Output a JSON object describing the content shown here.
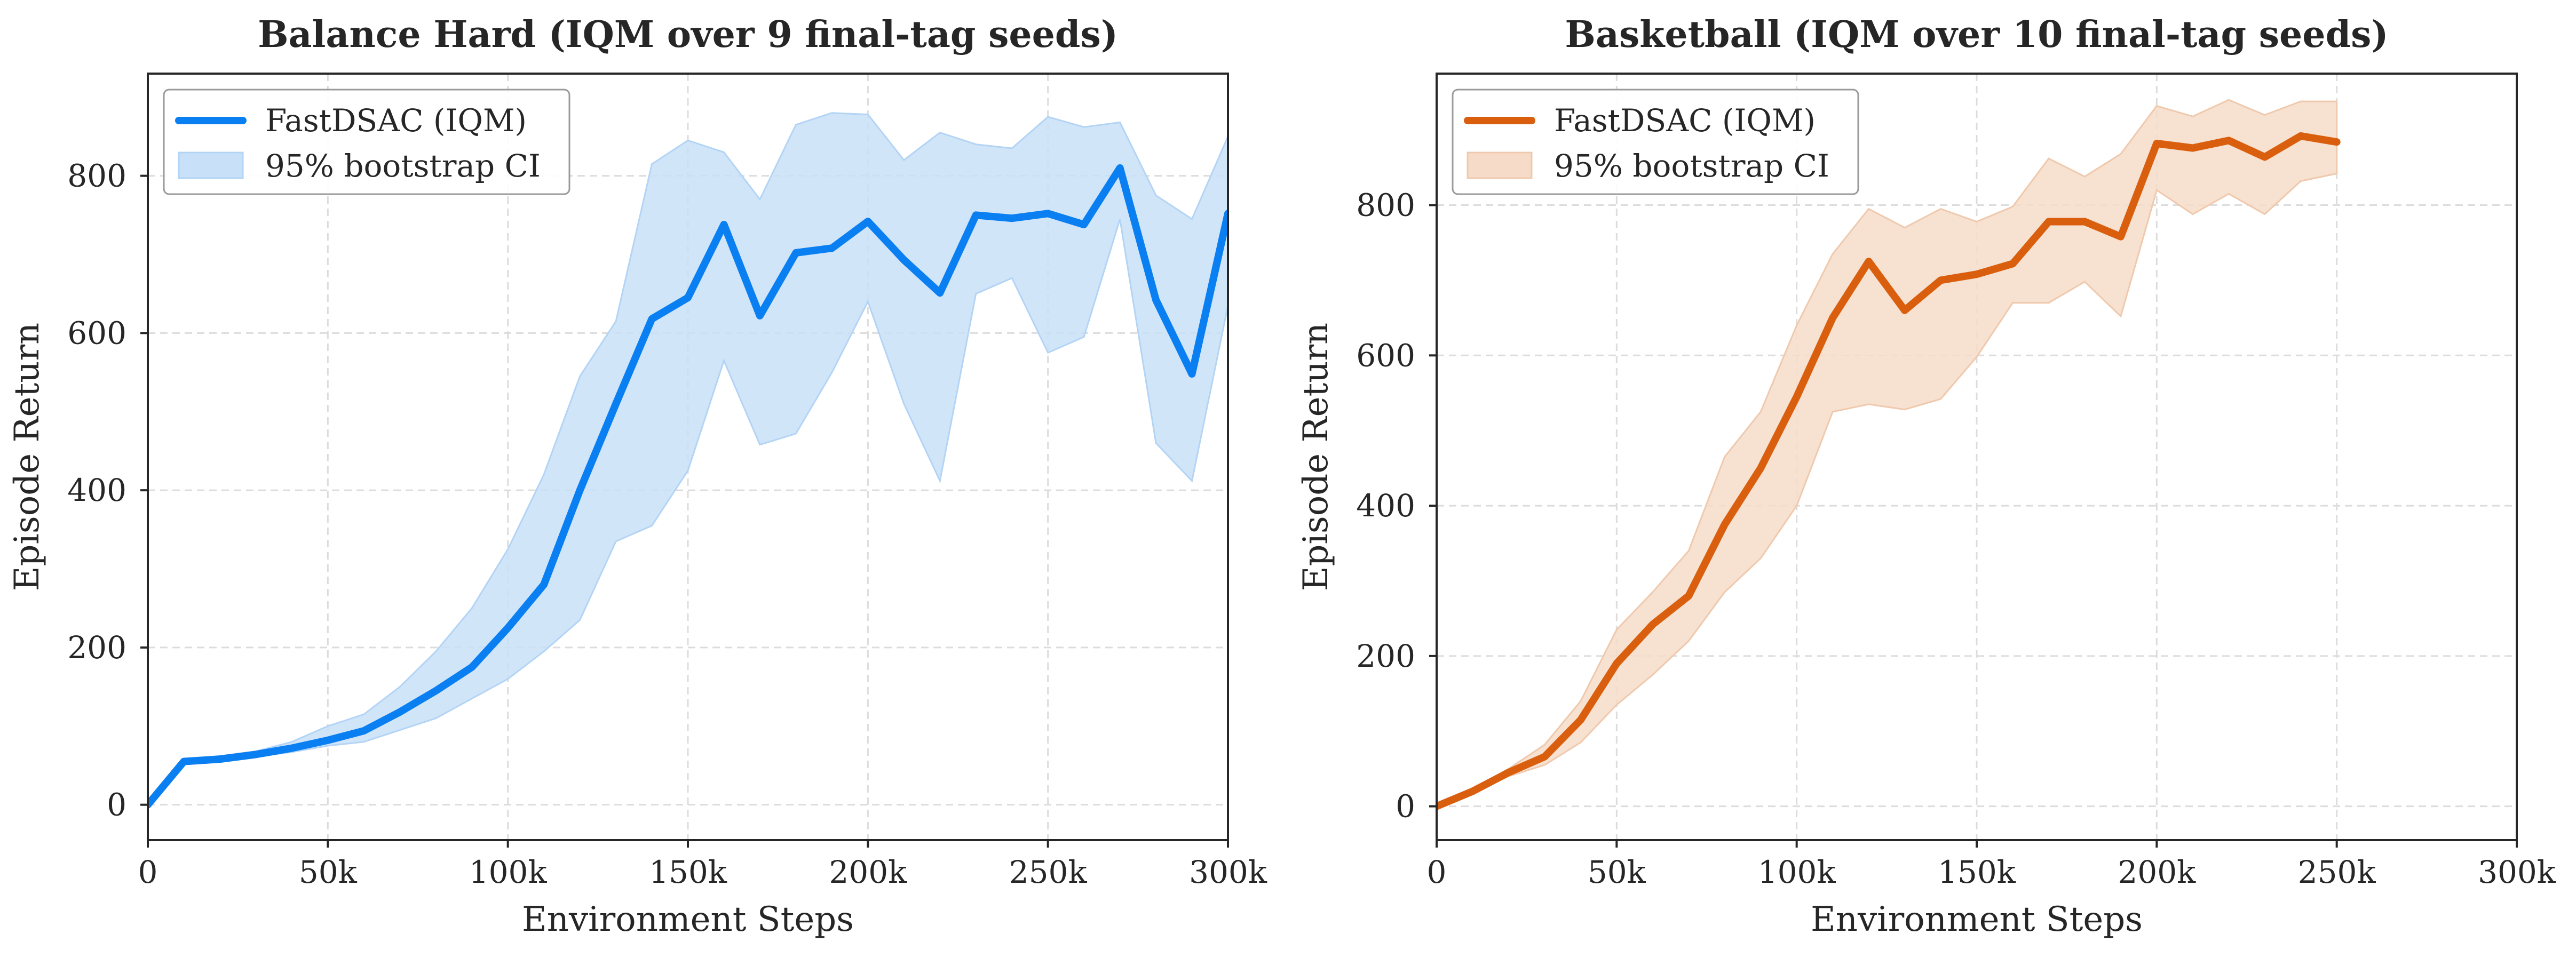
{
  "chart_data": [
    {
      "type": "line",
      "title": "Balance Hard (IQM over 9 final-tag seeds)",
      "xlabel": "Environment Steps",
      "ylabel": "Episode Return",
      "xlim": [
        0,
        300000
      ],
      "ylim": [
        -45,
        930
      ],
      "xticks": [
        0,
        50000,
        100000,
        150000,
        200000,
        250000,
        300000
      ],
      "xtick_labels": [
        "0",
        "50k",
        "100k",
        "150k",
        "200k",
        "250k",
        "300k"
      ],
      "yticks": [
        0,
        200,
        400,
        600,
        800
      ],
      "ytick_labels": [
        "0",
        "200",
        "400",
        "600",
        "800"
      ],
      "grid": true,
      "legend_position": "upper-left",
      "colors": {
        "line": "#0a7ff2",
        "band": "#c9e1f8",
        "band_edge": "#b3d4f5"
      },
      "series": [
        {
          "name": "FastDSAC (IQM)",
          "x": [
            0,
            10000,
            20000,
            30000,
            40000,
            50000,
            60000,
            70000,
            80000,
            90000,
            100000,
            110000,
            120000,
            130000,
            140000,
            150000,
            160000,
            170000,
            180000,
            190000,
            200000,
            210000,
            220000,
            230000,
            240000,
            250000,
            260000,
            270000,
            280000,
            290000,
            300000
          ],
          "y": [
            0,
            55,
            58,
            64,
            72,
            82,
            94,
            118,
            145,
            175,
            225,
            280,
            400,
            510,
            618,
            645,
            738,
            622,
            702,
            708,
            742,
            693,
            651,
            750,
            746,
            752,
            738,
            810,
            642,
            548,
            752
          ]
        },
        {
          "name": "95% bootstrap CI",
          "x": [
            0,
            10000,
            20000,
            30000,
            40000,
            50000,
            60000,
            70000,
            80000,
            90000,
            100000,
            110000,
            120000,
            130000,
            140000,
            150000,
            160000,
            170000,
            180000,
            190000,
            200000,
            210000,
            220000,
            230000,
            240000,
            250000,
            260000,
            270000,
            280000,
            290000,
            300000
          ],
          "lower": [
            0,
            53,
            56,
            61,
            67,
            75,
            80,
            95,
            110,
            135,
            160,
            195,
            235,
            335,
            355,
            425,
            565,
            458,
            472,
            550,
            640,
            510,
            412,
            650,
            670,
            575,
            595,
            745,
            460,
            412,
            635
          ],
          "upper": [
            0,
            58,
            62,
            68,
            80,
            100,
            115,
            150,
            195,
            250,
            325,
            420,
            545,
            615,
            815,
            845,
            830,
            770,
            865,
            880,
            878,
            820,
            855,
            840,
            835,
            875,
            862,
            868,
            775,
            745,
            850
          ]
        }
      ]
    },
    {
      "type": "line",
      "title": "Basketball (IQM over 10 final-tag seeds)",
      "xlabel": "Environment Steps",
      "ylabel": "Episode Return",
      "xlim": [
        0,
        300000
      ],
      "ylim": [
        -45,
        975
      ],
      "xticks": [
        0,
        50000,
        100000,
        150000,
        200000,
        250000,
        300000
      ],
      "xtick_labels": [
        "0",
        "50k",
        "100k",
        "150k",
        "200k",
        "250k",
        "300k"
      ],
      "yticks": [
        0,
        200,
        400,
        600,
        800
      ],
      "ytick_labels": [
        "0",
        "200",
        "400",
        "600",
        "800"
      ],
      "grid": true,
      "legend_position": "upper-left",
      "colors": {
        "line": "#d95f0e",
        "band": "#f6dcc8",
        "band_edge": "#efc9ad"
      },
      "series": [
        {
          "name": "FastDSAC (IQM)",
          "x": [
            0,
            10000,
            20000,
            30000,
            40000,
            50000,
            60000,
            70000,
            80000,
            90000,
            100000,
            110000,
            120000,
            130000,
            140000,
            150000,
            160000,
            170000,
            180000,
            190000,
            200000,
            210000,
            220000,
            230000,
            240000,
            250000
          ],
          "y": [
            0,
            20,
            45,
            66,
            115,
            190,
            242,
            280,
            375,
            450,
            545,
            650,
            725,
            660,
            700,
            708,
            722,
            778,
            778,
            758,
            882,
            876,
            886,
            864,
            892,
            884
          ]
        },
        {
          "name": "95% bootstrap CI",
          "x": [
            0,
            10000,
            20000,
            30000,
            40000,
            50000,
            60000,
            70000,
            80000,
            90000,
            100000,
            110000,
            120000,
            130000,
            140000,
            150000,
            160000,
            170000,
            180000,
            190000,
            200000,
            210000,
            220000,
            230000,
            240000,
            250000
          ],
          "lower": [
            0,
            18,
            40,
            55,
            85,
            135,
            175,
            220,
            285,
            330,
            400,
            525,
            535,
            528,
            542,
            598,
            670,
            670,
            698,
            652,
            820,
            788,
            815,
            788,
            832,
            842
          ],
          "upper": [
            0,
            22,
            50,
            82,
            140,
            235,
            285,
            340,
            465,
            525,
            640,
            735,
            795,
            770,
            795,
            778,
            798,
            862,
            838,
            868,
            932,
            918,
            940,
            920,
            938,
            938
          ]
        }
      ]
    }
  ]
}
